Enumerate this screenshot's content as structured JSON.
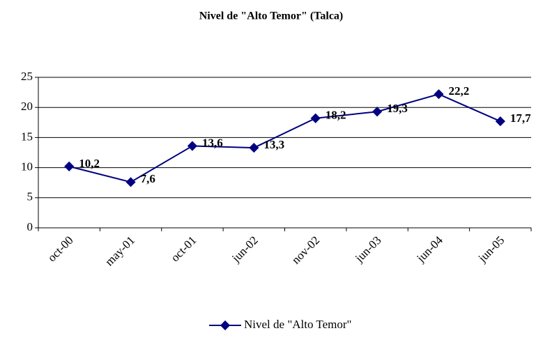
{
  "chart_data": {
    "type": "line",
    "title": "Nivel de \"Alto Temor\" (Talca)",
    "categories": [
      "oct-00",
      "may-01",
      "oct-01",
      "jun-02",
      "nov-02",
      "jun-03",
      "jun-04",
      "jun-05"
    ],
    "series": [
      {
        "name": "Nivel de \"Alto Temor\"",
        "color": "#000080",
        "values": [
          10.2,
          7.6,
          13.6,
          13.3,
          18.2,
          19.3,
          22.2,
          17.7
        ],
        "value_labels": [
          "10,2",
          "7,6",
          "13,6",
          "13,3",
          "18,2",
          "19,3",
          "22,2",
          "17,7"
        ]
      }
    ],
    "ylim": [
      0,
      25
    ],
    "yticks": [
      0,
      5,
      10,
      15,
      20,
      25
    ],
    "grid": true,
    "legend": "bottom"
  }
}
